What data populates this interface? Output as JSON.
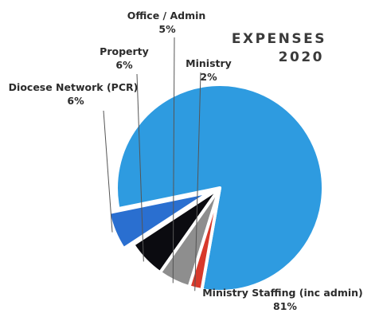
{
  "chart_data": {
    "type": "pie",
    "title_line1": "EXPENSES",
    "title_line2": "2020",
    "legend": "none",
    "slices": [
      {
        "name": "Ministry Staffing (inc admin)",
        "value": 81,
        "label": "81%",
        "color": "#2e9be0",
        "exploded": false
      },
      {
        "name": "Diocese Network (PCR)",
        "value": 6,
        "label": "6%",
        "color": "#2a6fd0",
        "exploded": true
      },
      {
        "name": "Property",
        "value": 6,
        "label": "6%",
        "color": "#0b0b10",
        "exploded": false
      },
      {
        "name": "Office / Admin",
        "value": 5,
        "label": "5%",
        "color": "#8e8e8e",
        "exploded": false
      },
      {
        "name": "Ministry",
        "value": 2,
        "label": "2%",
        "color": "#d8392b",
        "exploded": false
      }
    ]
  }
}
